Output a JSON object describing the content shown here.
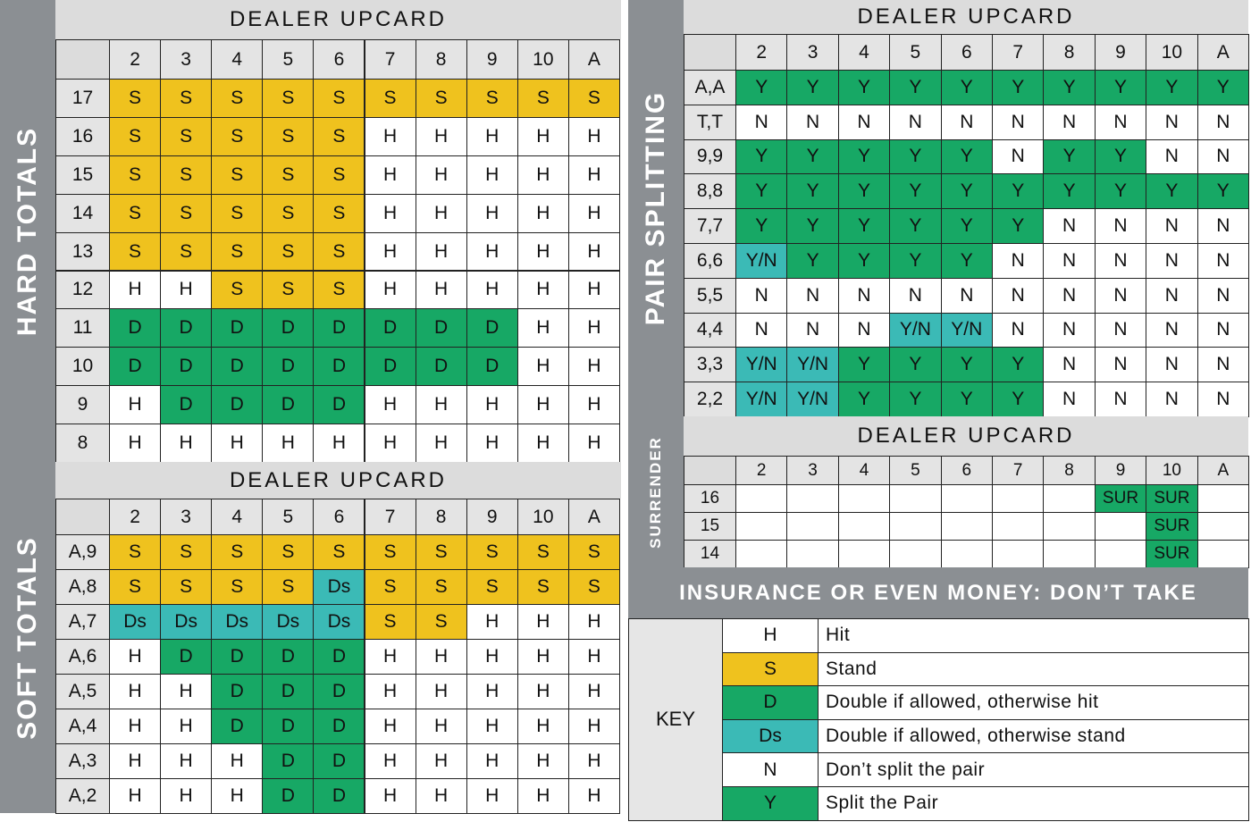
{
  "cell_colors": {
    "S": "#efc21e",
    "D": "#17a865",
    "Ds": "#3bbab6",
    "Y/N": "#3bbab6",
    "Y": "#17a865",
    "SUR": "#17a865"
  },
  "hard_totals": {
    "label": "HARD TOTALS",
    "header": "DEALER UPCARD",
    "columns": [
      "2",
      "3",
      "4",
      "5",
      "6",
      "7",
      "8",
      "9",
      "10",
      "A"
    ],
    "rows": [
      {
        "label": "17",
        "cells": [
          "S",
          "S",
          "S",
          "S",
          "S",
          "S",
          "S",
          "S",
          "S",
          "S"
        ]
      },
      {
        "label": "16",
        "cells": [
          "S",
          "S",
          "S",
          "S",
          "S",
          "H",
          "H",
          "H",
          "H",
          "H"
        ]
      },
      {
        "label": "15",
        "cells": [
          "S",
          "S",
          "S",
          "S",
          "S",
          "H",
          "H",
          "H",
          "H",
          "H"
        ]
      },
      {
        "label": "14",
        "cells": [
          "S",
          "S",
          "S",
          "S",
          "S",
          "H",
          "H",
          "H",
          "H",
          "H"
        ]
      },
      {
        "label": "13",
        "cells": [
          "S",
          "S",
          "S",
          "S",
          "S",
          "H",
          "H",
          "H",
          "H",
          "H"
        ]
      },
      {
        "label": "12",
        "cells": [
          "H",
          "H",
          "S",
          "S",
          "S",
          "H",
          "H",
          "H",
          "H",
          "H"
        ]
      },
      {
        "label": "11",
        "cells": [
          "D",
          "D",
          "D",
          "D",
          "D",
          "D",
          "D",
          "D",
          "H",
          "H"
        ]
      },
      {
        "label": "10",
        "cells": [
          "D",
          "D",
          "D",
          "D",
          "D",
          "D",
          "D",
          "D",
          "H",
          "H"
        ]
      },
      {
        "label": "9",
        "cells": [
          "H",
          "D",
          "D",
          "D",
          "D",
          "H",
          "H",
          "H",
          "H",
          "H"
        ]
      },
      {
        "label": "8",
        "cells": [
          "H",
          "H",
          "H",
          "H",
          "H",
          "H",
          "H",
          "H",
          "H",
          "H"
        ]
      }
    ]
  },
  "soft_totals": {
    "label": "SOFT TOTALS",
    "header": "DEALER UPCARD",
    "columns": [
      "2",
      "3",
      "4",
      "5",
      "6",
      "7",
      "8",
      "9",
      "10",
      "A"
    ],
    "rows": [
      {
        "label": "A,9",
        "cells": [
          "S",
          "S",
          "S",
          "S",
          "S",
          "S",
          "S",
          "S",
          "S",
          "S"
        ]
      },
      {
        "label": "A,8",
        "cells": [
          "S",
          "S",
          "S",
          "S",
          "Ds",
          "S",
          "S",
          "S",
          "S",
          "S"
        ]
      },
      {
        "label": "A,7",
        "cells": [
          "Ds",
          "Ds",
          "Ds",
          "Ds",
          "Ds",
          "S",
          "S",
          "H",
          "H",
          "H"
        ]
      },
      {
        "label": "A,6",
        "cells": [
          "H",
          "D",
          "D",
          "D",
          "D",
          "H",
          "H",
          "H",
          "H",
          "H"
        ]
      },
      {
        "label": "A,5",
        "cells": [
          "H",
          "H",
          "D",
          "D",
          "D",
          "H",
          "H",
          "H",
          "H",
          "H"
        ]
      },
      {
        "label": "A,4",
        "cells": [
          "H",
          "H",
          "D",
          "D",
          "D",
          "H",
          "H",
          "H",
          "H",
          "H"
        ]
      },
      {
        "label": "A,3",
        "cells": [
          "H",
          "H",
          "H",
          "D",
          "D",
          "H",
          "H",
          "H",
          "H",
          "H"
        ]
      },
      {
        "label": "A,2",
        "cells": [
          "H",
          "H",
          "H",
          "D",
          "D",
          "H",
          "H",
          "H",
          "H",
          "H"
        ]
      }
    ]
  },
  "pair_splitting": {
    "label": "PAIR SPLITTING",
    "header": "DEALER UPCARD",
    "columns": [
      "2",
      "3",
      "4",
      "5",
      "6",
      "7",
      "8",
      "9",
      "10",
      "A"
    ],
    "rows": [
      {
        "label": "A,A",
        "cells": [
          "Y",
          "Y",
          "Y",
          "Y",
          "Y",
          "Y",
          "Y",
          "Y",
          "Y",
          "Y"
        ]
      },
      {
        "label": "T,T",
        "cells": [
          "N",
          "N",
          "N",
          "N",
          "N",
          "N",
          "N",
          "N",
          "N",
          "N"
        ]
      },
      {
        "label": "9,9",
        "cells": [
          "Y",
          "Y",
          "Y",
          "Y",
          "Y",
          "N",
          "Y",
          "Y",
          "N",
          "N"
        ]
      },
      {
        "label": "8,8",
        "cells": [
          "Y",
          "Y",
          "Y",
          "Y",
          "Y",
          "Y",
          "Y",
          "Y",
          "Y",
          "Y"
        ]
      },
      {
        "label": "7,7",
        "cells": [
          "Y",
          "Y",
          "Y",
          "Y",
          "Y",
          "Y",
          "N",
          "N",
          "N",
          "N"
        ]
      },
      {
        "label": "6,6",
        "cells": [
          "Y/N",
          "Y",
          "Y",
          "Y",
          "Y",
          "N",
          "N",
          "N",
          "N",
          "N"
        ]
      },
      {
        "label": "5,5",
        "cells": [
          "N",
          "N",
          "N",
          "N",
          "N",
          "N",
          "N",
          "N",
          "N",
          "N"
        ]
      },
      {
        "label": "4,4",
        "cells": [
          "N",
          "N",
          "N",
          "Y/N",
          "Y/N",
          "N",
          "N",
          "N",
          "N",
          "N"
        ]
      },
      {
        "label": "3,3",
        "cells": [
          "Y/N",
          "Y/N",
          "Y",
          "Y",
          "Y",
          "Y",
          "N",
          "N",
          "N",
          "N"
        ]
      },
      {
        "label": "2,2",
        "cells": [
          "Y/N",
          "Y/N",
          "Y",
          "Y",
          "Y",
          "Y",
          "N",
          "N",
          "N",
          "N"
        ]
      }
    ]
  },
  "surrender": {
    "label": "SURRENDER",
    "header": "DEALER UPCARD",
    "columns": [
      "2",
      "3",
      "4",
      "5",
      "6",
      "7",
      "8",
      "9",
      "10",
      "A"
    ],
    "rows": [
      {
        "label": "16",
        "cells": [
          null,
          null,
          null,
          null,
          null,
          null,
          null,
          "SUR",
          "SUR",
          null
        ]
      },
      {
        "label": "15",
        "cells": [
          null,
          null,
          null,
          null,
          null,
          null,
          null,
          null,
          "SUR",
          null
        ]
      },
      {
        "label": "14",
        "cells": [
          null,
          null,
          null,
          null,
          null,
          null,
          null,
          null,
          "SUR",
          null
        ]
      }
    ]
  },
  "insurance": "INSURANCE OR EVEN MONEY: DON’T TAKE",
  "key": {
    "label": "KEY",
    "rows": [
      {
        "code": "H",
        "meaning": "Hit"
      },
      {
        "code": "S",
        "meaning": "Stand"
      },
      {
        "code": "D",
        "meaning": "Double if allowed, otherwise hit"
      },
      {
        "code": "Ds",
        "meaning": "Double if allowed, otherwise stand"
      },
      {
        "code": "N",
        "meaning": "Don’t split the pair"
      },
      {
        "code": "Y",
        "meaning": "Split the Pair"
      }
    ]
  }
}
